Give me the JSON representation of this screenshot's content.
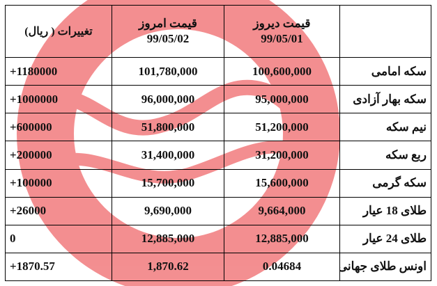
{
  "header": {
    "change_label": "تغییرات ( ریال)",
    "today_label": "قیمت امروز",
    "today_date": "99/05/02",
    "yesterday_label": "قیمت دیروز",
    "yesterday_date": "99/05/01",
    "name_label": ""
  },
  "rows": [
    {
      "name": "سکه امامی",
      "yesterday": "100,600,000",
      "today": "101,780,000",
      "change": "+1180000"
    },
    {
      "name": "سکه بهار آزادی",
      "yesterday": "95,000,000",
      "today": "96,000,000",
      "change": "+1000000"
    },
    {
      "name": "نیم سکه",
      "yesterday": "51,200,000",
      "today": "51,800,000",
      "change": "+600000"
    },
    {
      "name": "ربع سکه",
      "yesterday": "31,200,000",
      "today": "31,400,000",
      "change": "+200000"
    },
    {
      "name": "سکه گرمی",
      "yesterday": "15,600,000",
      "today": "15,700,000",
      "change": "+100000"
    },
    {
      "name": "طلای 18 عیار",
      "yesterday": "9,664,000",
      "today": "9,690,000",
      "change": "+26000"
    },
    {
      "name": "طلای 24 عیار",
      "yesterday": "12,885,000",
      "today": "12,885,000",
      "change": "0"
    },
    {
      "name": "اونس طلای جهانی",
      "yesterday": "0.04684",
      "today": "1,870.62",
      "change": "+1870.57"
    }
  ],
  "colors": {
    "positive_change": "#1f9d36",
    "watermark": "#e8474a"
  }
}
